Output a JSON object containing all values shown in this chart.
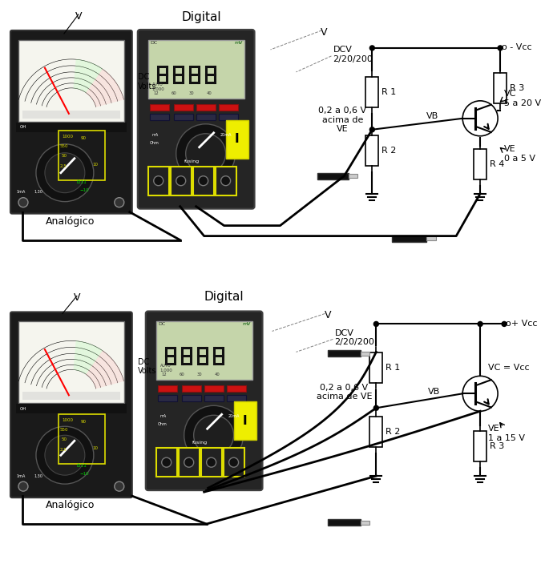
{
  "bg_color": "#ffffff",
  "panel1": {
    "title": "Digital",
    "analog_label": "Analógico",
    "dcv_label": "DCV\n2/20/200",
    "dc_volts_label": "DC\nVolts",
    "v_label1": "V",
    "v_label2": "V",
    "r1_label": "R 1",
    "r2_label": "R 2",
    "r3_label": "R 3",
    "r4_label": "R 4",
    "vb_label": "VB",
    "vc_label": "VC\n5 a 20 V",
    "ve_label": "VE\n0 a 5 V",
    "vcc_label": "o - Vcc",
    "annotation": "0,2 a 0,6 V\nacima de\nVE"
  },
  "panel2": {
    "title": "Digital",
    "analog_label": "Analógico",
    "dcv_label": "DCV\n2/20/200",
    "dc_volts_label": "DC\nVolts",
    "v_label1": "V",
    "v_label2": "V",
    "r1_label": "R 1",
    "r2_label": "R 2",
    "r3_label": "R 3",
    "vb_label": "VB",
    "vc_label": "VC = Vcc",
    "ve_label": "VE\n1 a 15 V",
    "vcc_label": "o+ Vcc",
    "annotation": "0,2 a 0,6 V\nacima de VE"
  }
}
